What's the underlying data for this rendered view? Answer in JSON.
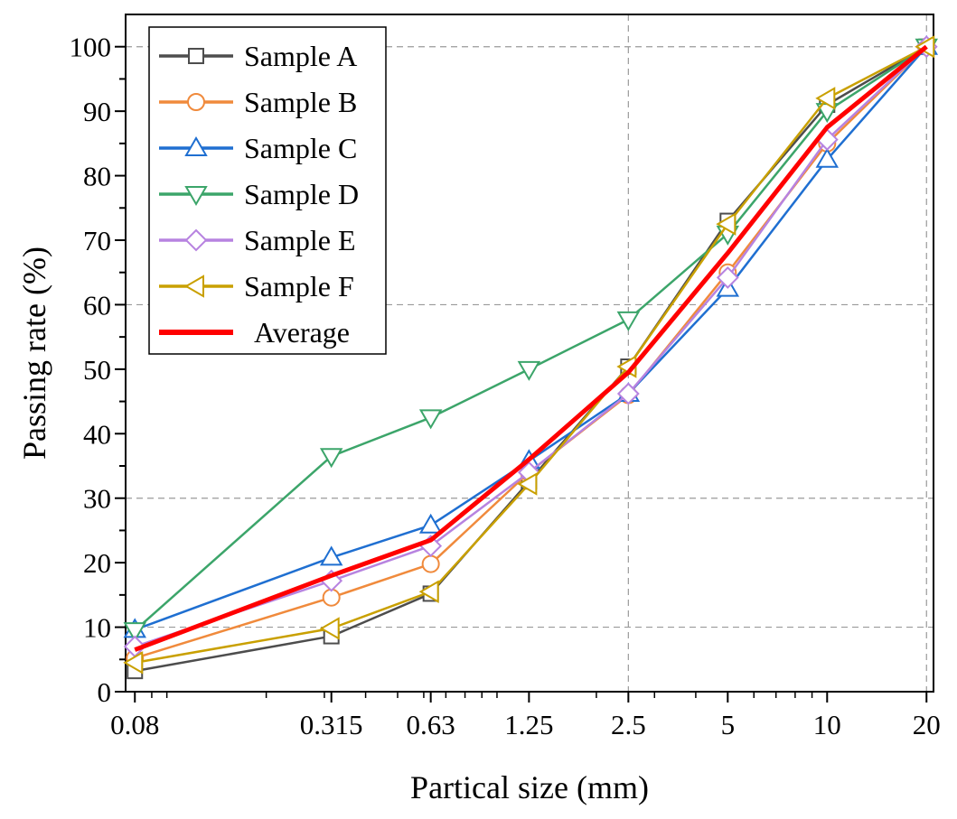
{
  "chart_data": {
    "type": "line",
    "xlabel": "Partical size (mm)",
    "ylabel": "Passing rate (%)",
    "x_scale": "log",
    "xlim": [
      0.075,
      21
    ],
    "ylim": [
      0,
      105
    ],
    "x": [
      0.08,
      0.315,
      0.63,
      1.25,
      2.5,
      5,
      10,
      20
    ],
    "x_tick_labels": [
      "0.08",
      "0.315",
      "0.63",
      "1.25",
      "2.5",
      "5",
      "10",
      "20"
    ],
    "y_ticks": [
      0,
      10,
      20,
      30,
      40,
      50,
      60,
      70,
      80,
      90,
      100
    ],
    "grid": "dashed, gray, at x = 2.5 and 20 and y = 10, 30, 60, 100",
    "legend_position": "top-left",
    "series": [
      {
        "name": "Sample A",
        "color": "#4d4d4d",
        "marker": "square",
        "values": [
          3.2,
          8.6,
          15.2,
          32.6,
          50.4,
          73.0,
          91.0,
          100
        ]
      },
      {
        "name": "Sample B",
        "color": "#f08a3c",
        "marker": "circle",
        "values": [
          5.2,
          14.6,
          19.8,
          34.0,
          46.0,
          65.0,
          85.0,
          100
        ]
      },
      {
        "name": "Sample C",
        "color": "#1f6fd1",
        "marker": "triangle-up",
        "values": [
          9.6,
          20.8,
          25.8,
          35.8,
          46.2,
          62.5,
          82.5,
          100
        ]
      },
      {
        "name": "Sample D",
        "color": "#3ca56a",
        "marker": "triangle-down",
        "values": [
          9.5,
          36.5,
          42.5,
          50.0,
          57.7,
          71.0,
          90.0,
          100
        ]
      },
      {
        "name": "Sample E",
        "color": "#b783e0",
        "marker": "diamond",
        "values": [
          7.0,
          17.2,
          22.6,
          34.0,
          46.2,
          64.2,
          85.6,
          100
        ]
      },
      {
        "name": "Sample F",
        "color": "#c9a000",
        "marker": "triangle-left",
        "values": [
          4.5,
          9.8,
          15.5,
          32.2,
          50.4,
          72.5,
          92.0,
          100
        ]
      },
      {
        "name": "Average",
        "color": "#ff0000",
        "marker": "none",
        "values": [
          6.5,
          18.0,
          23.5,
          36.0,
          49.5,
          68.0,
          87.5,
          100
        ]
      }
    ]
  }
}
